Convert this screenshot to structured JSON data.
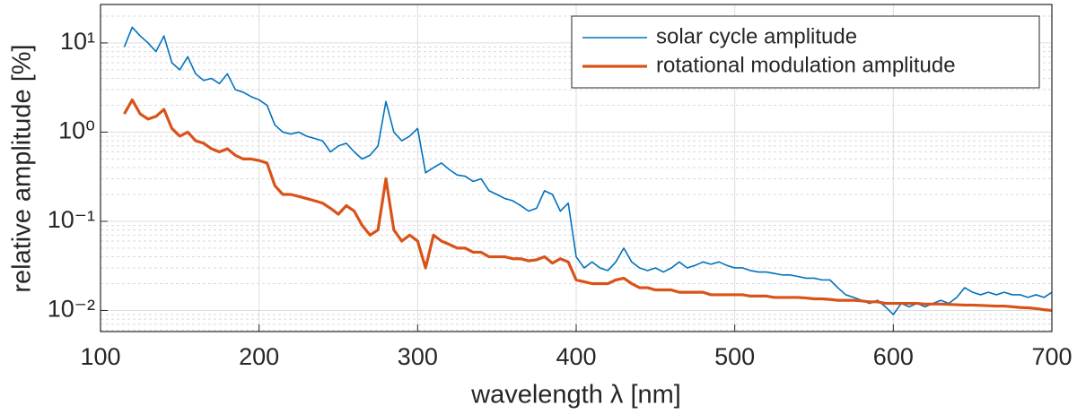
{
  "chart_data": {
    "type": "line",
    "xlabel": "wavelength λ [nm]",
    "ylabel": "relative amplitude [%]",
    "log_y": true,
    "grid": true,
    "minor_grid": true,
    "legend": "top-right",
    "xlim": [
      100,
      700
    ],
    "xticks": [
      100,
      200,
      300,
      400,
      500,
      600,
      700
    ],
    "ylim": [
      0.0058,
      27
    ],
    "yticks": [
      {
        "value": 0.01,
        "label": "10⁻²"
      },
      {
        "value": 0.1,
        "label": "10⁻¹"
      },
      {
        "value": 1,
        "label": "10⁰"
      },
      {
        "value": 10,
        "label": "10¹"
      }
    ],
    "x": [
      115,
      120,
      125,
      130,
      135,
      140,
      145,
      150,
      155,
      160,
      165,
      170,
      175,
      180,
      185,
      190,
      195,
      200,
      205,
      210,
      215,
      220,
      225,
      230,
      235,
      240,
      245,
      250,
      255,
      260,
      265,
      270,
      275,
      280,
      285,
      290,
      295,
      300,
      305,
      310,
      315,
      320,
      325,
      330,
      335,
      340,
      345,
      350,
      355,
      360,
      365,
      370,
      375,
      380,
      385,
      390,
      395,
      400,
      405,
      410,
      415,
      420,
      425,
      430,
      435,
      440,
      445,
      450,
      455,
      460,
      465,
      470,
      475,
      480,
      485,
      490,
      495,
      500,
      505,
      510,
      515,
      520,
      525,
      530,
      535,
      540,
      545,
      550,
      555,
      560,
      565,
      570,
      575,
      580,
      585,
      590,
      595,
      600,
      605,
      610,
      615,
      620,
      625,
      630,
      635,
      640,
      645,
      650,
      655,
      660,
      665,
      670,
      675,
      680,
      685,
      690,
      695,
      700
    ],
    "series": [
      {
        "name": "solar cycle amplitude",
        "color": "#0072bd",
        "width": 1.6,
        "values": [
          9,
          15,
          12,
          10,
          8,
          12,
          6,
          5,
          7,
          4.5,
          3.8,
          4,
          3.5,
          4.5,
          3,
          2.8,
          2.5,
          2.3,
          2,
          1.2,
          1.0,
          0.95,
          1.0,
          0.9,
          0.85,
          0.8,
          0.6,
          0.7,
          0.75,
          0.6,
          0.5,
          0.55,
          0.7,
          2.2,
          1.0,
          0.8,
          0.9,
          1.1,
          0.35,
          0.4,
          0.45,
          0.38,
          0.33,
          0.32,
          0.28,
          0.3,
          0.22,
          0.2,
          0.18,
          0.17,
          0.15,
          0.13,
          0.14,
          0.22,
          0.2,
          0.13,
          0.16,
          0.04,
          0.03,
          0.035,
          0.03,
          0.028,
          0.035,
          0.05,
          0.035,
          0.03,
          0.028,
          0.03,
          0.027,
          0.03,
          0.035,
          0.03,
          0.032,
          0.035,
          0.033,
          0.035,
          0.032,
          0.03,
          0.03,
          0.028,
          0.027,
          0.027,
          0.026,
          0.025,
          0.025,
          0.024,
          0.023,
          0.023,
          0.022,
          0.022,
          0.018,
          0.015,
          0.014,
          0.013,
          0.012,
          0.013,
          0.011,
          0.009,
          0.012,
          0.011,
          0.012,
          0.011,
          0.012,
          0.013,
          0.012,
          0.014,
          0.018,
          0.016,
          0.015,
          0.016,
          0.015,
          0.016,
          0.015,
          0.015,
          0.014,
          0.015,
          0.014,
          0.016
        ]
      },
      {
        "name": "rotational modulation amplitude",
        "color": "#d95319",
        "width": 3.2,
        "values": [
          1.6,
          2.3,
          1.6,
          1.4,
          1.5,
          1.8,
          1.1,
          0.9,
          1.0,
          0.8,
          0.75,
          0.65,
          0.6,
          0.65,
          0.55,
          0.5,
          0.5,
          0.48,
          0.45,
          0.25,
          0.2,
          0.2,
          0.19,
          0.18,
          0.17,
          0.16,
          0.14,
          0.12,
          0.15,
          0.13,
          0.09,
          0.07,
          0.08,
          0.3,
          0.08,
          0.06,
          0.07,
          0.06,
          0.03,
          0.07,
          0.06,
          0.055,
          0.05,
          0.05,
          0.045,
          0.045,
          0.04,
          0.04,
          0.04,
          0.038,
          0.038,
          0.036,
          0.037,
          0.04,
          0.034,
          0.038,
          0.035,
          0.022,
          0.021,
          0.02,
          0.02,
          0.02,
          0.022,
          0.023,
          0.02,
          0.018,
          0.018,
          0.017,
          0.017,
          0.017,
          0.016,
          0.016,
          0.016,
          0.016,
          0.015,
          0.015,
          0.015,
          0.015,
          0.015,
          0.0145,
          0.0145,
          0.0145,
          0.014,
          0.014,
          0.014,
          0.014,
          0.0138,
          0.0135,
          0.0135,
          0.0133,
          0.013,
          0.013,
          0.013,
          0.0128,
          0.0125,
          0.0125,
          0.012,
          0.012,
          0.012,
          0.012,
          0.012,
          0.0118,
          0.0118,
          0.0118,
          0.0117,
          0.0116,
          0.0115,
          0.0115,
          0.0114,
          0.0113,
          0.0112,
          0.0112,
          0.011,
          0.0108,
          0.0107,
          0.0105,
          0.0102,
          0.01
        ]
      }
    ]
  }
}
